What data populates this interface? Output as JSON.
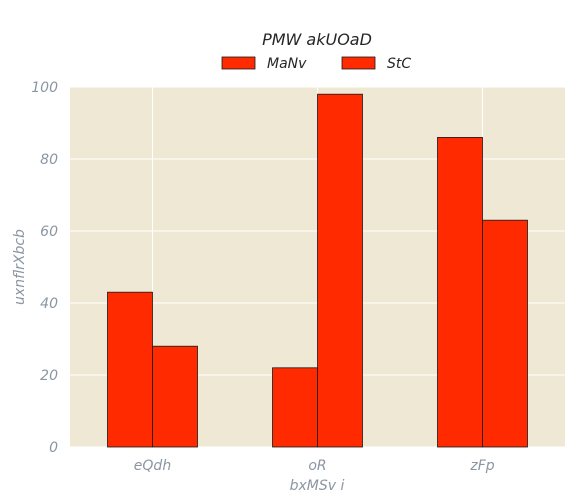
{
  "chart_data": {
    "type": "bar",
    "title": "PMW  akUOaD",
    "xlabel": "bxMSv i",
    "ylabel": "uxnflrXbcb",
    "categories": [
      "eQdh",
      "oR",
      "zFp"
    ],
    "series": [
      {
        "name": "MaNv",
        "values": [
          43,
          22,
          86
        ],
        "color": "#ff2a00"
      },
      {
        "name": "StC",
        "values": [
          28,
          98,
          63
        ],
        "color": "#ff2a00"
      }
    ],
    "ylim": [
      0,
      100
    ],
    "yticks": [
      0,
      20,
      40,
      60,
      80,
      100
    ],
    "grid": true,
    "legend_position": "top-center",
    "background_color": "#efe8d5"
  }
}
